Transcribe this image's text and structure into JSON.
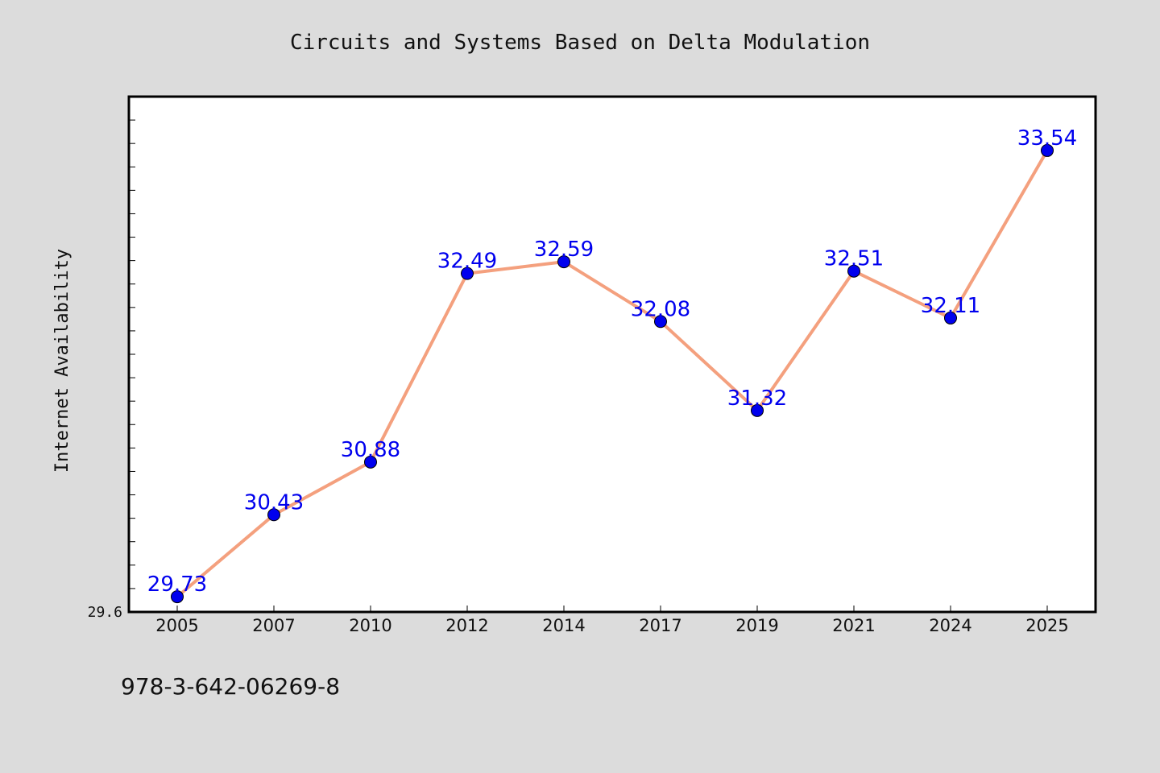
{
  "chart_data": {
    "type": "line",
    "title": "Circuits and Systems Based on Delta Modulation",
    "xlabel": "",
    "ylabel": "Internet Availability",
    "categories": [
      "2005",
      "2007",
      "2010",
      "2012",
      "2014",
      "2017",
      "2019",
      "2021",
      "2024",
      "2025"
    ],
    "series": [
      {
        "values": [
          29.73,
          30.43,
          30.88,
          32.49,
          32.59,
          32.08,
          31.32,
          32.51,
          32.11,
          33.54
        ],
        "labels": [
          "29.73",
          "30.43",
          "30.88",
          "32.49",
          "32.59",
          "32.08",
          "31.32",
          "32.51",
          "32.11",
          "33.54"
        ]
      }
    ],
    "ylim": [
      29.6,
      34.0
    ],
    "yticklabels": [
      "29.6"
    ],
    "grid": false,
    "legend": "none"
  },
  "footer_text": "978-3-642-06269-8",
  "colors": {
    "background": "#dcdcdc",
    "plot_background": "#ffffff",
    "line": "#f4a07e",
    "marker": "#0000ee",
    "data_label": "#0000ee",
    "text": "#111111"
  }
}
